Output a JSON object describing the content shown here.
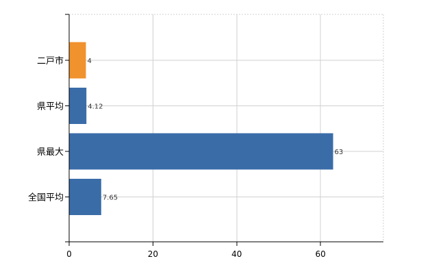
{
  "chart_data": {
    "type": "bar",
    "orientation": "horizontal",
    "title": "",
    "xlabel": "",
    "ylabel": "",
    "categories": [
      "二戸市",
      "県平均",
      "県最大",
      "全国平均"
    ],
    "values": [
      4,
      4.12,
      63,
      7.65
    ],
    "value_labels": [
      "4",
      "4.12",
      "63",
      "7.65"
    ],
    "bar_colors": [
      "#f0922e",
      "#3a6ca8",
      "#3a6ca8",
      "#3a6ca8"
    ],
    "xlim": [
      0,
      75
    ],
    "x_ticks": [
      0,
      20,
      40,
      60
    ],
    "x_tick_labels": [
      "0",
      "20",
      "40",
      "60"
    ],
    "grid": true,
    "legend": "none"
  }
}
